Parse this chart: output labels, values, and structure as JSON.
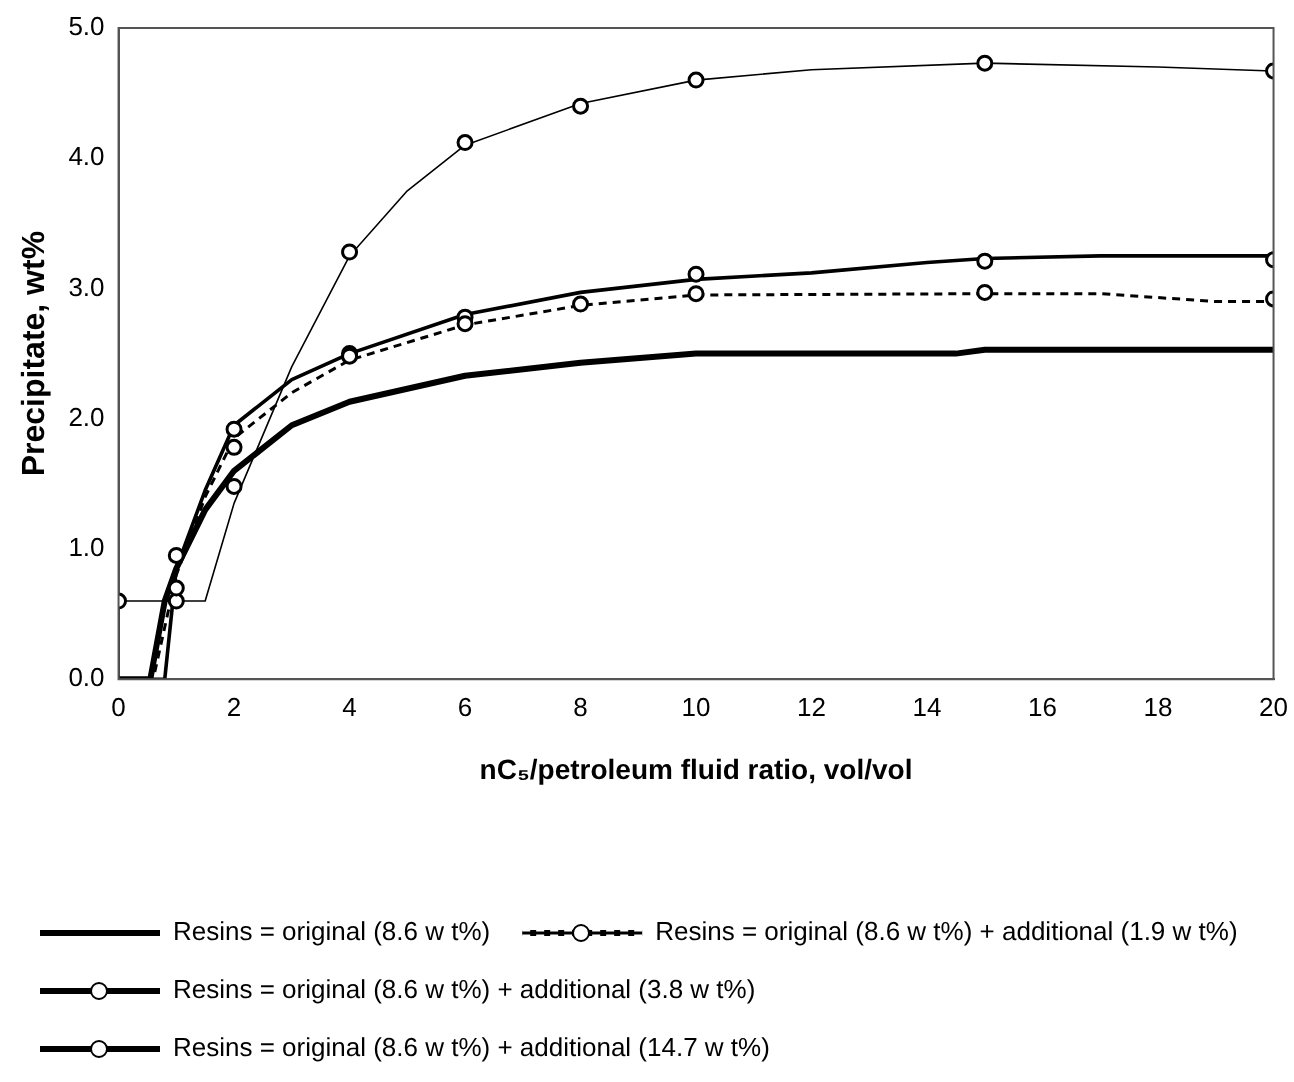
{
  "chart_data": {
    "type": "line",
    "xlabel": "nC₅/petroleum fluid ratio, vol/vol",
    "ylabel": "Precipitate, wt%",
    "xlim": [
      0,
      20
    ],
    "xticks": [
      0,
      2,
      4,
      6,
      8,
      10,
      12,
      14,
      16,
      18,
      20
    ],
    "ylim": [
      0,
      5
    ],
    "yticks": [
      {
        "value": 0,
        "label": "0.0"
      },
      {
        "value": 1,
        "label": "1.0"
      },
      {
        "value": 2,
        "label": "2.0"
      },
      {
        "value": 3,
        "label": "3.0"
      },
      {
        "value": 4,
        "label": "4.0"
      },
      {
        "value": 5,
        "label": "5.0"
      }
    ],
    "grid": false,
    "legend": "bottom",
    "marker": "none",
    "series": [
      {
        "name": "Resins = original (8.6 w t%)",
        "line_style": "solid",
        "color": "#000000",
        "x": [
          0,
          0.55,
          0.8,
          1,
          1.5,
          2,
          3,
          4,
          6,
          8,
          10,
          14.5,
          15,
          20
        ],
        "values": [
          0,
          0,
          0.6,
          0.85,
          1.3,
          1.6,
          1.95,
          2.13,
          2.33,
          2.43,
          2.5,
          2.5,
          2.53,
          2.53
        ]
      },
      {
        "name": "Resins = original (8.6 w t%) + additional (1.9 w t%)",
        "line_style": "dashed",
        "color": "#000000",
        "x": [
          0,
          0.6,
          1,
          1.5,
          2,
          3,
          4,
          6,
          8,
          10,
          15,
          17,
          19,
          20
        ],
        "values": [
          0,
          0,
          0.8,
          1.4,
          1.85,
          2.2,
          2.45,
          2.72,
          2.87,
          2.95,
          2.96,
          2.96,
          2.9,
          2.9
        ]
      },
      {
        "type": "scatter",
        "marker": "circle",
        "color": "#000000",
        "x": [
          1,
          2,
          4,
          6,
          8,
          10,
          15,
          20
        ],
        "values": [
          0.7,
          1.78,
          2.48,
          2.73,
          2.88,
          2.96,
          2.97,
          2.92
        ]
      },
      {
        "name": "Resins = original (8.6 w t%) + additional (3.8 w t%)",
        "line_style": "solid",
        "color": "#000000",
        "x": [
          0,
          0.8,
          1,
          1.5,
          2,
          3,
          4,
          6,
          8,
          10,
          12,
          14,
          15,
          17,
          20
        ],
        "values": [
          0,
          0,
          0.85,
          1.45,
          1.95,
          2.3,
          2.5,
          2.8,
          2.97,
          3.07,
          3.12,
          3.2,
          3.23,
          3.25,
          3.25
        ]
      },
      {
        "type": "scatter",
        "marker": "circle",
        "color": "#000000",
        "x": [
          1,
          2,
          4,
          6,
          10,
          15,
          20
        ],
        "values": [
          0.95,
          1.92,
          2.5,
          2.78,
          3.11,
          3.21,
          3.22
        ]
      },
      {
        "name": "Resins = original (8.6 w t%) + additional (14.7 w t%)",
        "line_style": "solid",
        "color": "#000000",
        "x": [
          0,
          0,
          1.5,
          2,
          3,
          4,
          5,
          6,
          8,
          10,
          12,
          15,
          18,
          20
        ],
        "values": [
          0,
          0.6,
          0.6,
          1.35,
          2.4,
          3.25,
          3.75,
          4.1,
          4.42,
          4.6,
          4.68,
          4.73,
          4.7,
          4.67
        ]
      },
      {
        "type": "scatter",
        "marker": "circle",
        "color": "#000000",
        "x": [
          0,
          1,
          2,
          4,
          6,
          8,
          10,
          15,
          20
        ],
        "values": [
          0.6,
          0.6,
          1.48,
          3.28,
          4.12,
          4.4,
          4.6,
          4.73,
          4.67
        ]
      }
    ]
  }
}
